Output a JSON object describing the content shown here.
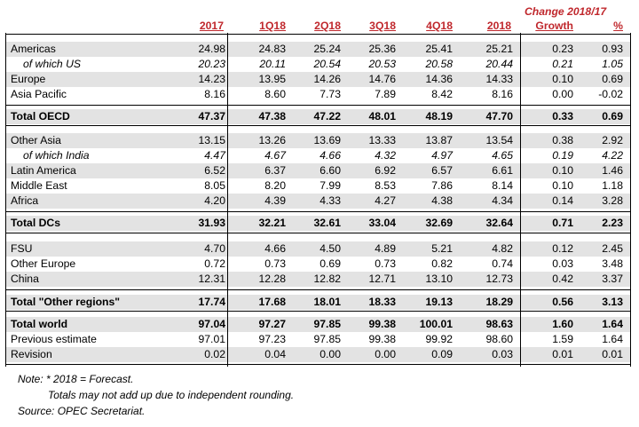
{
  "header": {
    "change_title": "Change 2018/17",
    "columns": [
      "2017",
      "1Q18",
      "2Q18",
      "3Q18",
      "4Q18",
      "2018",
      "Growth",
      "%"
    ]
  },
  "rows": [
    {
      "label": "Americas",
      "values": [
        "24.98",
        "24.83",
        "25.24",
        "25.36",
        "25.41",
        "25.21",
        "0.23",
        "0.93"
      ]
    },
    {
      "label": "of which US",
      "values": [
        "20.23",
        "20.11",
        "20.54",
        "20.53",
        "20.58",
        "20.44",
        "0.21",
        "1.05"
      ]
    },
    {
      "label": "Europe",
      "values": [
        "14.23",
        "13.95",
        "14.26",
        "14.76",
        "14.36",
        "14.33",
        "0.10",
        "0.69"
      ]
    },
    {
      "label": "Asia Pacific",
      "values": [
        "8.16",
        "8.60",
        "7.73",
        "7.89",
        "8.42",
        "8.16",
        "0.00",
        "-0.02"
      ]
    },
    {
      "label": "Total OECD",
      "values": [
        "47.37",
        "47.38",
        "47.22",
        "48.01",
        "48.19",
        "47.70",
        "0.33",
        "0.69"
      ]
    },
    {
      "label": "Other Asia",
      "values": [
        "13.15",
        "13.26",
        "13.69",
        "13.33",
        "13.87",
        "13.54",
        "0.38",
        "2.92"
      ]
    },
    {
      "label": "of which India",
      "values": [
        "4.47",
        "4.67",
        "4.66",
        "4.32",
        "4.97",
        "4.65",
        "0.19",
        "4.22"
      ]
    },
    {
      "label": "Latin America",
      "values": [
        "6.52",
        "6.37",
        "6.60",
        "6.92",
        "6.57",
        "6.61",
        "0.10",
        "1.46"
      ]
    },
    {
      "label": "Middle East",
      "values": [
        "8.05",
        "8.20",
        "7.99",
        "8.53",
        "7.86",
        "8.14",
        "0.10",
        "1.18"
      ]
    },
    {
      "label": "Africa",
      "values": [
        "4.20",
        "4.39",
        "4.33",
        "4.27",
        "4.38",
        "4.34",
        "0.14",
        "3.28"
      ]
    },
    {
      "label": "Total DCs",
      "values": [
        "31.93",
        "32.21",
        "32.61",
        "33.04",
        "32.69",
        "32.64",
        "0.71",
        "2.23"
      ]
    },
    {
      "label": "FSU",
      "values": [
        "4.70",
        "4.66",
        "4.50",
        "4.89",
        "5.21",
        "4.82",
        "0.12",
        "2.45"
      ]
    },
    {
      "label": "Other Europe",
      "values": [
        "0.72",
        "0.73",
        "0.69",
        "0.73",
        "0.82",
        "0.74",
        "0.03",
        "3.48"
      ]
    },
    {
      "label": "China",
      "values": [
        "12.31",
        "12.28",
        "12.82",
        "12.71",
        "13.10",
        "12.73",
        "0.42",
        "3.37"
      ]
    },
    {
      "label": "Total \"Other regions\"",
      "values": [
        "17.74",
        "17.68",
        "18.01",
        "18.33",
        "19.13",
        "18.29",
        "0.56",
        "3.13"
      ]
    },
    {
      "label": "Total world",
      "values": [
        "97.04",
        "97.27",
        "97.85",
        "99.38",
        "100.01",
        "98.63",
        "1.60",
        "1.64"
      ]
    },
    {
      "label": "Previous estimate",
      "values": [
        "97.01",
        "97.23",
        "97.85",
        "99.38",
        "99.92",
        "98.60",
        "1.59",
        "1.64"
      ]
    },
    {
      "label": "Revision",
      "values": [
        "0.02",
        "0.04",
        "0.00",
        "0.00",
        "0.09",
        "0.03",
        "0.01",
        "0.01"
      ]
    }
  ],
  "notes": {
    "line1": "Note: * 2018 = Forecast.",
    "line2": "Totals may not add up due to independent rounding.",
    "line3": "Source: OPEC Secretariat."
  }
}
